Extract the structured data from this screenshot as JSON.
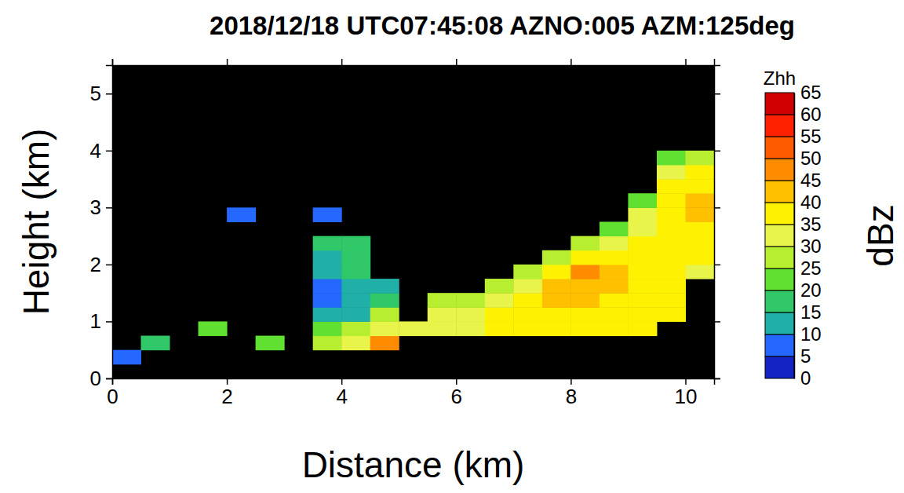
{
  "chart_data": {
    "type": "heatmap",
    "title": "2018/12/18 UTC07:45:08 AZNO:005 AZM:125deg",
    "x_label": "Distance (km)",
    "y_label": "Height (km)",
    "xlim": [
      0,
      10.5
    ],
    "ylim": [
      0,
      5.5
    ],
    "xticks": [
      0,
      2,
      4,
      6,
      8,
      10
    ],
    "yticks": [
      0,
      1,
      2,
      3,
      4,
      5
    ],
    "x": [
      0.25,
      0.75,
      1.25,
      1.75,
      2.25,
      2.75,
      3.25,
      3.75,
      4.25,
      4.75,
      5.25,
      5.75,
      6.25,
      6.75,
      7.25,
      7.75,
      8.25,
      8.75,
      9.25,
      9.75,
      10.25
    ],
    "y": [
      0.125,
      0.375,
      0.625,
      0.875,
      1.125,
      1.375,
      1.625,
      1.875,
      2.125,
      2.375,
      2.625,
      2.875,
      3.125,
      3.375,
      3.625,
      3.875
    ],
    "cells": [
      [
        null,
        null,
        null,
        null,
        null,
        null,
        null,
        null,
        null,
        null,
        null,
        null,
        null,
        null,
        null,
        null,
        null,
        null,
        null,
        null,
        null
      ],
      [
        5,
        null,
        null,
        null,
        null,
        null,
        null,
        null,
        null,
        null,
        null,
        null,
        null,
        null,
        null,
        null,
        null,
        null,
        null,
        null,
        null
      ],
      [
        null,
        15,
        null,
        null,
        null,
        20,
        null,
        25,
        30,
        45,
        null,
        null,
        null,
        null,
        null,
        null,
        null,
        null,
        null,
        null,
        null
      ],
      [
        null,
        null,
        null,
        20,
        null,
        null,
        null,
        22,
        25,
        30,
        30,
        32,
        33,
        35,
        35,
        36,
        37,
        37,
        36,
        null,
        null
      ],
      [
        null,
        null,
        null,
        null,
        null,
        null,
        null,
        10,
        12,
        25,
        null,
        30,
        32,
        35,
        37,
        38,
        38,
        38,
        37,
        36,
        null
      ],
      [
        null,
        null,
        null,
        null,
        null,
        null,
        null,
        8,
        10,
        15,
        null,
        25,
        27,
        32,
        36,
        40,
        40,
        38,
        38,
        36,
        null
      ],
      [
        null,
        null,
        null,
        null,
        null,
        null,
        null,
        8,
        12,
        12,
        null,
        null,
        null,
        25,
        33,
        42,
        43,
        40,
        38,
        35,
        null
      ],
      [
        null,
        null,
        null,
        null,
        null,
        null,
        null,
        10,
        15,
        null,
        null,
        null,
        null,
        null,
        25,
        38,
        46,
        42,
        38,
        37,
        30
      ],
      [
        null,
        null,
        null,
        null,
        null,
        null,
        null,
        12,
        18,
        null,
        null,
        null,
        null,
        null,
        null,
        25,
        37,
        38,
        37,
        38,
        36
      ],
      [
        null,
        null,
        null,
        null,
        null,
        null,
        null,
        15,
        15,
        null,
        null,
        null,
        null,
        null,
        null,
        null,
        25,
        33,
        36,
        38,
        37
      ],
      [
        null,
        null,
        null,
        null,
        null,
        null,
        null,
        null,
        null,
        null,
        null,
        null,
        null,
        null,
        null,
        null,
        null,
        24,
        33,
        38,
        38
      ],
      [
        null,
        null,
        null,
        null,
        8,
        null,
        null,
        8,
        null,
        null,
        null,
        null,
        null,
        null,
        null,
        null,
        null,
        null,
        30,
        38,
        40
      ],
      [
        null,
        null,
        null,
        null,
        null,
        null,
        null,
        null,
        null,
        null,
        null,
        null,
        null,
        null,
        null,
        null,
        null,
        null,
        24,
        37,
        41
      ],
      [
        null,
        null,
        null,
        null,
        null,
        null,
        null,
        null,
        null,
        null,
        null,
        null,
        null,
        null,
        null,
        null,
        null,
        null,
        null,
        35,
        38
      ],
      [
        null,
        null,
        null,
        null,
        null,
        null,
        null,
        null,
        null,
        null,
        null,
        null,
        null,
        null,
        null,
        null,
        null,
        null,
        null,
        33,
        36
      ],
      [
        null,
        null,
        null,
        null,
        null,
        null,
        null,
        null,
        null,
        null,
        null,
        null,
        null,
        null,
        null,
        null,
        null,
        null,
        null,
        23,
        25
      ]
    ],
    "colorbar": {
      "label": "Zhh",
      "unit": "dBz",
      "range": [
        0,
        65
      ],
      "ticks": [
        0,
        5,
        10,
        15,
        20,
        25,
        30,
        35,
        40,
        45,
        50,
        55,
        60,
        65
      ],
      "colors": [
        "#1424c4",
        "#2468ff",
        "#20b0a8",
        "#30c868",
        "#60e030",
        "#b8ee30",
        "#e8f44a",
        "#fff200",
        "#ffc000",
        "#ff8c00",
        "#ff5a00",
        "#ff2000",
        "#d00000"
      ]
    }
  }
}
